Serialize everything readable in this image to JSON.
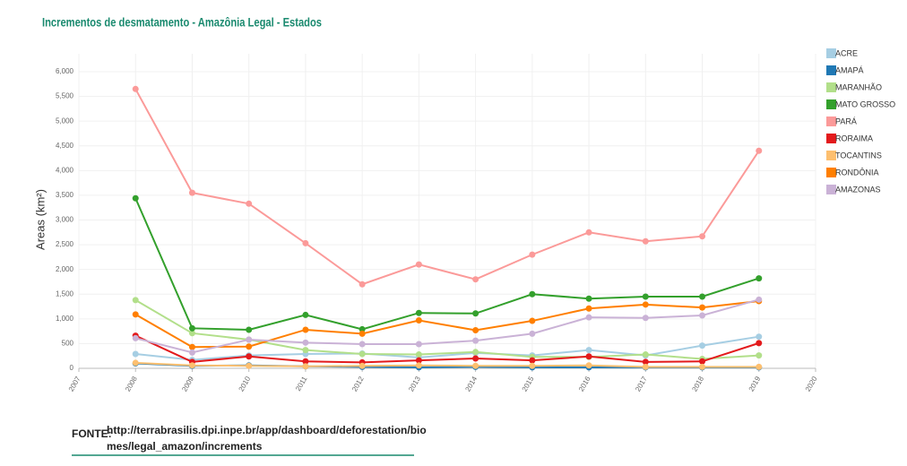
{
  "chart_data": {
    "type": "line",
    "title": "Incrementos de desmatamento - Amazônia Legal - Estados",
    "y_label": "Areas (km²)",
    "x": [
      2008,
      2009,
      2010,
      2011,
      2012,
      2013,
      2014,
      2015,
      2016,
      2017,
      2018,
      2019
    ],
    "xlim": [
      2007,
      2020
    ],
    "xticks": [
      2007,
      2008,
      2009,
      2010,
      2011,
      2012,
      2013,
      2014,
      2015,
      2016,
      2017,
      2018,
      2019,
      2020
    ],
    "ylim": [
      0,
      6000
    ],
    "yticks": [
      0,
      500,
      {
        "value": 1000,
        "label": "1,000"
      },
      {
        "value": 1500,
        "label": "1,500"
      },
      {
        "value": 2000,
        "label": "2,000"
      },
      {
        "value": 2500,
        "label": "2,500"
      },
      {
        "value": 3000,
        "label": "3,000"
      },
      {
        "value": 3500,
        "label": "3,500"
      },
      {
        "value": 4000,
        "label": "4,000"
      },
      {
        "value": 4500,
        "label": "4,500"
      },
      {
        "value": 5000,
        "label": "5,000"
      },
      {
        "value": 5500,
        "label": "5,500"
      },
      {
        "value": 6000,
        "label": "6,000"
      }
    ],
    "grid": true,
    "legend": "right",
    "series": [
      {
        "name": "ACRE",
        "color": "#a6cee3",
        "values": [
          290,
          170,
          260,
          290,
          300,
          220,
          310,
          260,
          370,
          260,
          460,
          640
        ]
      },
      {
        "name": "AMAPÁ",
        "color": "#1f78b4",
        "values": [
          100,
          50,
          60,
          40,
          30,
          20,
          30,
          20,
          20,
          20,
          20,
          20
        ]
      },
      {
        "name": "MARANHÃO",
        "color": "#b2df8a",
        "values": [
          1380,
          710,
          580,
          370,
          290,
          280,
          330,
          230,
          230,
          280,
          190,
          260
        ]
      },
      {
        "name": "MATO GROSSO",
        "color": "#33a02c",
        "values": [
          3440,
          810,
          780,
          1080,
          790,
          1120,
          1110,
          1500,
          1410,
          1450,
          1450,
          1820
        ]
      },
      {
        "name": "PARÁ",
        "color": "#fb9a99",
        "values": [
          5650,
          3550,
          3330,
          2530,
          1700,
          2100,
          1800,
          2300,
          2750,
          2570,
          2670,
          4400
        ]
      },
      {
        "name": "RORAIMA",
        "color": "#e31a1c",
        "values": [
          660,
          130,
          240,
          140,
          120,
          160,
          200,
          160,
          240,
          130,
          140,
          510
        ]
      },
      {
        "name": "TOCANTINS",
        "color": "#fdbf6f",
        "values": [
          110,
          60,
          50,
          40,
          50,
          60,
          50,
          50,
          60,
          30,
          30,
          30
        ]
      },
      {
        "name": "RONDÔNIA",
        "color": "#ff7f00",
        "values": [
          1090,
          430,
          440,
          780,
          700,
          970,
          770,
          960,
          1210,
          1290,
          1230,
          1360
        ]
      },
      {
        "name": "AMAZONAS",
        "color": "#cab2d6",
        "values": [
          610,
          320,
          580,
          520,
          490,
          490,
          560,
          700,
          1030,
          1020,
          1070,
          1390
        ]
      }
    ],
    "source_label": "FONTE:",
    "source_lines": [
      "http://terrabrasilis.dpi.inpe.br/app/dashboard/deforestation/bio",
      "mes/legal_amazon/increments"
    ]
  }
}
